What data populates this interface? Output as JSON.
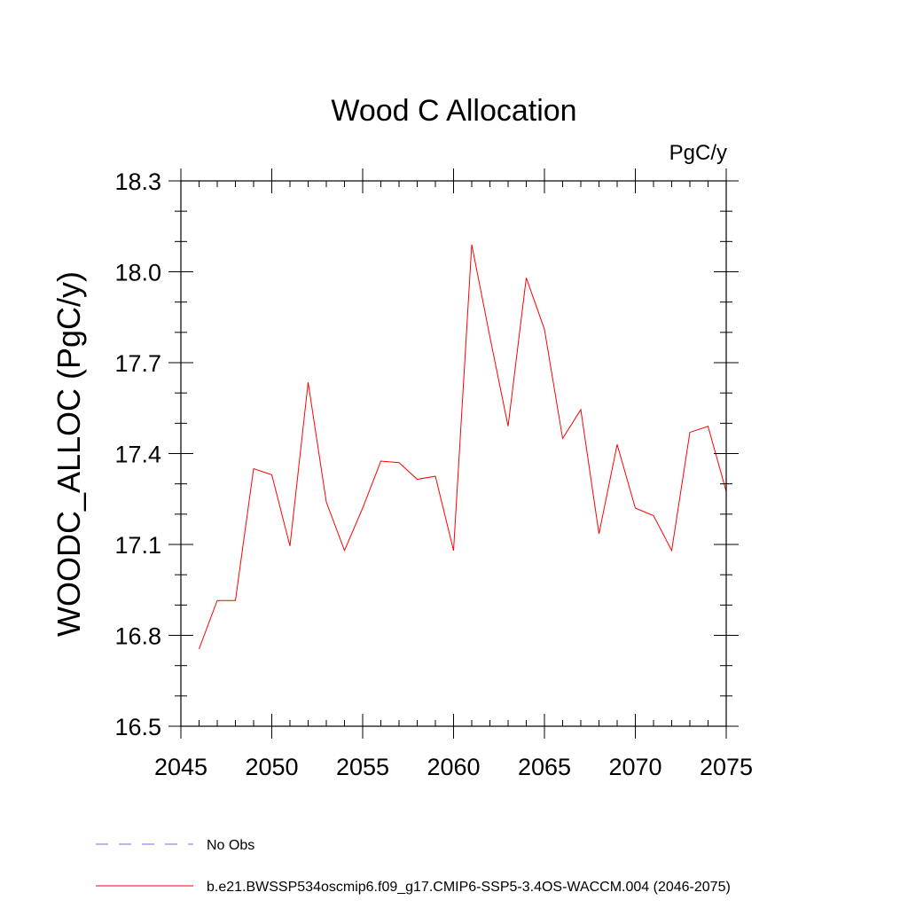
{
  "chart_data": {
    "type": "line",
    "title": "Wood C Allocation",
    "units_label": "PgC/y",
    "ylabel": "WOODC_ALLOC  (PgC/y)",
    "xlabel": "",
    "xlim": [
      2045,
      2075
    ],
    "ylim": [
      16.5,
      18.3
    ],
    "xticks": [
      2045,
      2050,
      2055,
      2060,
      2065,
      2070,
      2075
    ],
    "xtick_labels": [
      "2045",
      "2050",
      "2055",
      "2060",
      "2065",
      "2070",
      "2075"
    ],
    "yticks": [
      16.5,
      16.8,
      17.1,
      17.4,
      17.7,
      18.0,
      18.3
    ],
    "ytick_labels": [
      "16.5",
      "16.8",
      "17.1",
      "17.4",
      "17.7",
      "18.0",
      "18.3"
    ],
    "y_minor_step": 0.1,
    "x_minor_step": 1,
    "series": [
      {
        "name": "b.e21.BWSSP534oscmip6.f09_g17.CMIP6-SSP5-3.4OS-WACCM.004 (2046-2075)",
        "color": "#ff0000",
        "style": "solid",
        "x": [
          2046,
          2047,
          2048,
          2049,
          2050,
          2051,
          2052,
          2053,
          2054,
          2055,
          2056,
          2057,
          2058,
          2059,
          2060,
          2061,
          2062,
          2063,
          2064,
          2065,
          2066,
          2067,
          2068,
          2069,
          2070,
          2071,
          2072,
          2073,
          2074,
          2075
        ],
        "values": [
          16.755,
          16.915,
          16.915,
          17.35,
          17.33,
          17.095,
          17.635,
          17.24,
          17.08,
          17.22,
          17.375,
          17.37,
          17.315,
          17.325,
          17.08,
          18.09,
          17.785,
          17.49,
          17.98,
          17.81,
          17.45,
          17.545,
          17.135,
          17.43,
          17.22,
          17.195,
          17.08,
          17.47,
          17.49,
          17.275
        ]
      }
    ],
    "legend": [
      {
        "label": "No Obs",
        "color": "#7b68ee",
        "style": "dashed"
      },
      {
        "label": "b.e21.BWSSP534oscmip6.f09_g17.CMIP6-SSP5-3.4OS-WACCM.004 (2046-2075)",
        "color": "#ff0000",
        "style": "solid"
      }
    ],
    "legend_position": "bottom-left"
  }
}
